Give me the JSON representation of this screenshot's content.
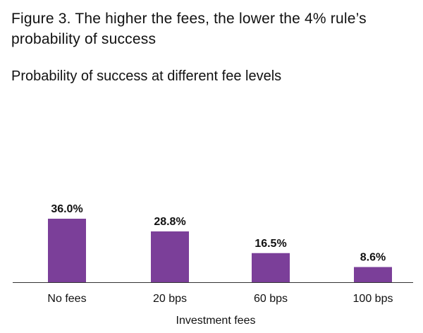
{
  "header": {
    "title": "Figure 3. The higher the fees, the lower the 4% rule’s probability of success",
    "subtitle": "Probability of success at different fee levels"
  },
  "chart_data": {
    "type": "bar",
    "title": "Figure 3. The higher the fees, the lower the 4% rule’s probability of success",
    "subtitle": "Probability of success at different fee levels",
    "xlabel": "Investment fees",
    "ylabel": "",
    "categories": [
      "No fees",
      "20 bps",
      "60 bps",
      "100 bps"
    ],
    "values": [
      36.0,
      28.8,
      16.5,
      8.6
    ],
    "data_labels": [
      "36.0%",
      "28.8%",
      "16.5%",
      "8.6%"
    ],
    "ylim": [
      0,
      40
    ],
    "grid": false,
    "legend": "none",
    "bar_color": "#7B3F99",
    "axis_color": "#333333"
  }
}
